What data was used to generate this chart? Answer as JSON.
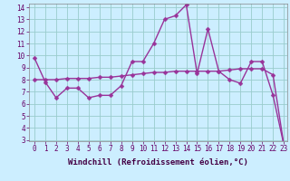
{
  "xlabel": "Windchill (Refroidissement éolien,°C)",
  "background_color": "#cceeff",
  "line_color": "#993399",
  "grid_color": "#99cccc",
  "xmin": 0,
  "xmax": 23,
  "ymin": 3,
  "ymax": 14,
  "line1_x": [
    0,
    1,
    2,
    3,
    4,
    5,
    6,
    7,
    8,
    9,
    10,
    11,
    12,
    13,
    14,
    15,
    16,
    17,
    18,
    19,
    20,
    21,
    22,
    23
  ],
  "line1_y": [
    9.8,
    7.8,
    6.5,
    7.3,
    7.3,
    6.5,
    6.7,
    6.7,
    7.5,
    9.5,
    9.5,
    11.0,
    13.0,
    13.3,
    14.2,
    8.5,
    12.2,
    8.7,
    8.0,
    7.7,
    9.5,
    9.5,
    6.7,
    2.6
  ],
  "line2_x": [
    0,
    1,
    2,
    3,
    4,
    5,
    6,
    7,
    8,
    9,
    10,
    11,
    12,
    13,
    14,
    15,
    16,
    17,
    18,
    19,
    20,
    21,
    22,
    23
  ],
  "line2_y": [
    8.0,
    8.0,
    8.0,
    8.1,
    8.1,
    8.1,
    8.2,
    8.2,
    8.3,
    8.4,
    8.5,
    8.6,
    8.6,
    8.7,
    8.7,
    8.7,
    8.7,
    8.7,
    8.8,
    8.9,
    8.9,
    8.9,
    8.4,
    2.6
  ],
  "xtick_labels": [
    "0",
    "1",
    "2",
    "3",
    "4",
    "5",
    "6",
    "7",
    "8",
    "9",
    "10",
    "11",
    "12",
    "13",
    "14",
    "15",
    "16",
    "17",
    "18",
    "19",
    "20",
    "21",
    "22",
    "23"
  ],
  "ytick_labels": [
    "3",
    "4",
    "5",
    "6",
    "7",
    "8",
    "9",
    "10",
    "11",
    "12",
    "13",
    "14"
  ],
  "marker_size": 2.5,
  "line_width": 1.0,
  "font_size_axis": 6.5,
  "font_size_ticks": 5.5
}
